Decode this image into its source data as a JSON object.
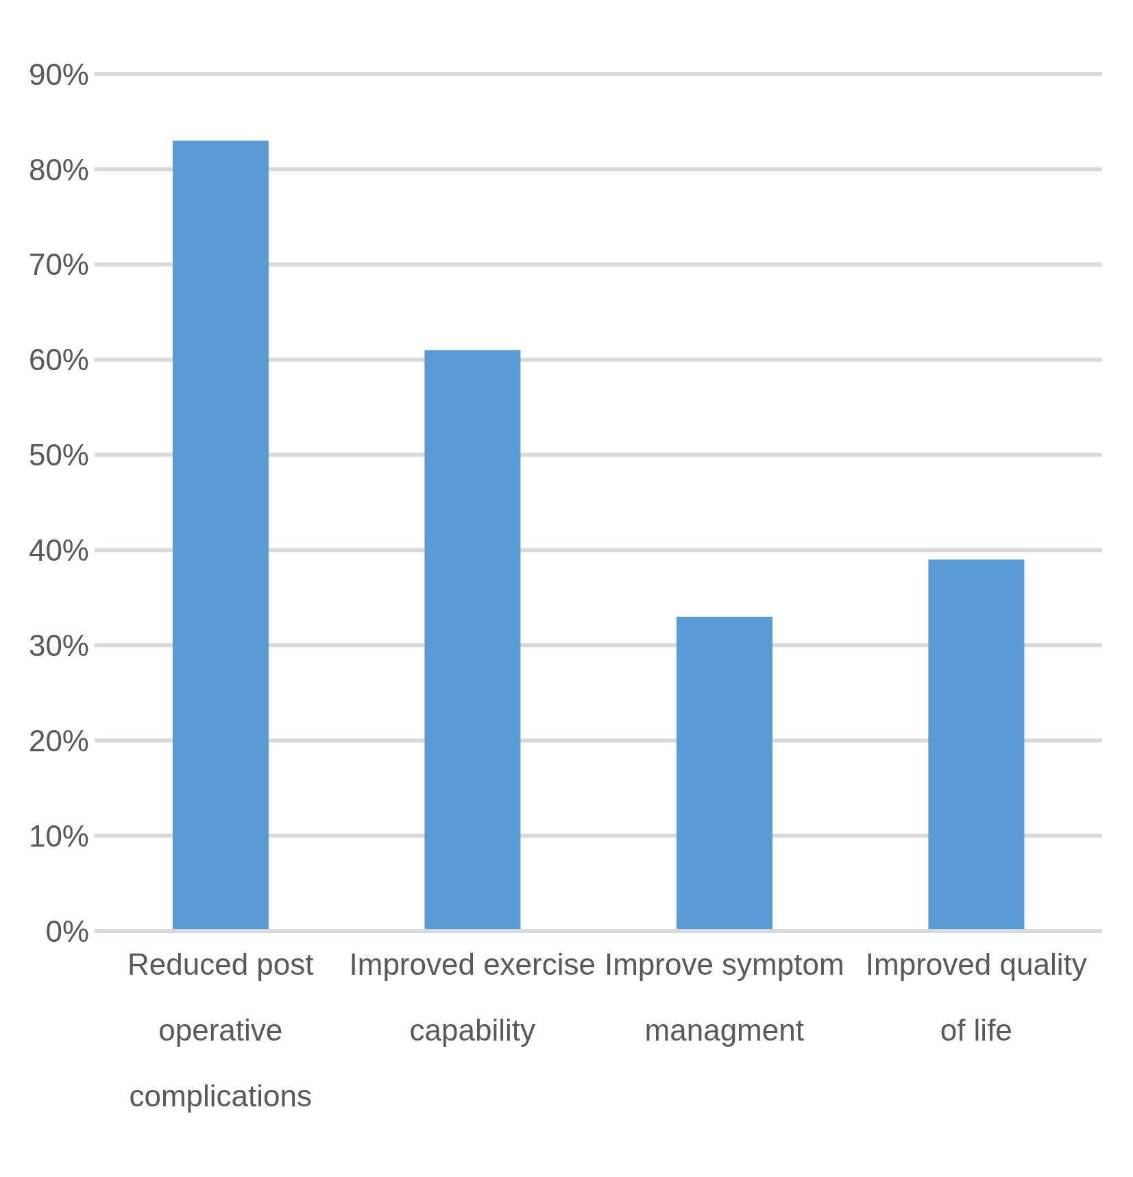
{
  "chart_data": {
    "type": "bar",
    "categories": [
      "Reduced post operative complications",
      "Improved exercise capability",
      "Improve symptom managment",
      "Improved quality of life"
    ],
    "values": [
      83,
      61,
      33,
      39
    ],
    "color": "#5b9bd5",
    "ylim": [
      0,
      90
    ],
    "yticks": [
      {
        "value": 0,
        "label": "0%"
      },
      {
        "value": 10,
        "label": "10%"
      },
      {
        "value": 20,
        "label": "20%"
      },
      {
        "value": 30,
        "label": "30%"
      },
      {
        "value": 40,
        "label": "40%"
      },
      {
        "value": 50,
        "label": "50%"
      },
      {
        "value": 60,
        "label": "60%"
      },
      {
        "value": 70,
        "label": "70%"
      },
      {
        "value": 80,
        "label": "80%"
      },
      {
        "value": 90,
        "label": "90%"
      }
    ],
    "grid": "y",
    "legend": false
  }
}
